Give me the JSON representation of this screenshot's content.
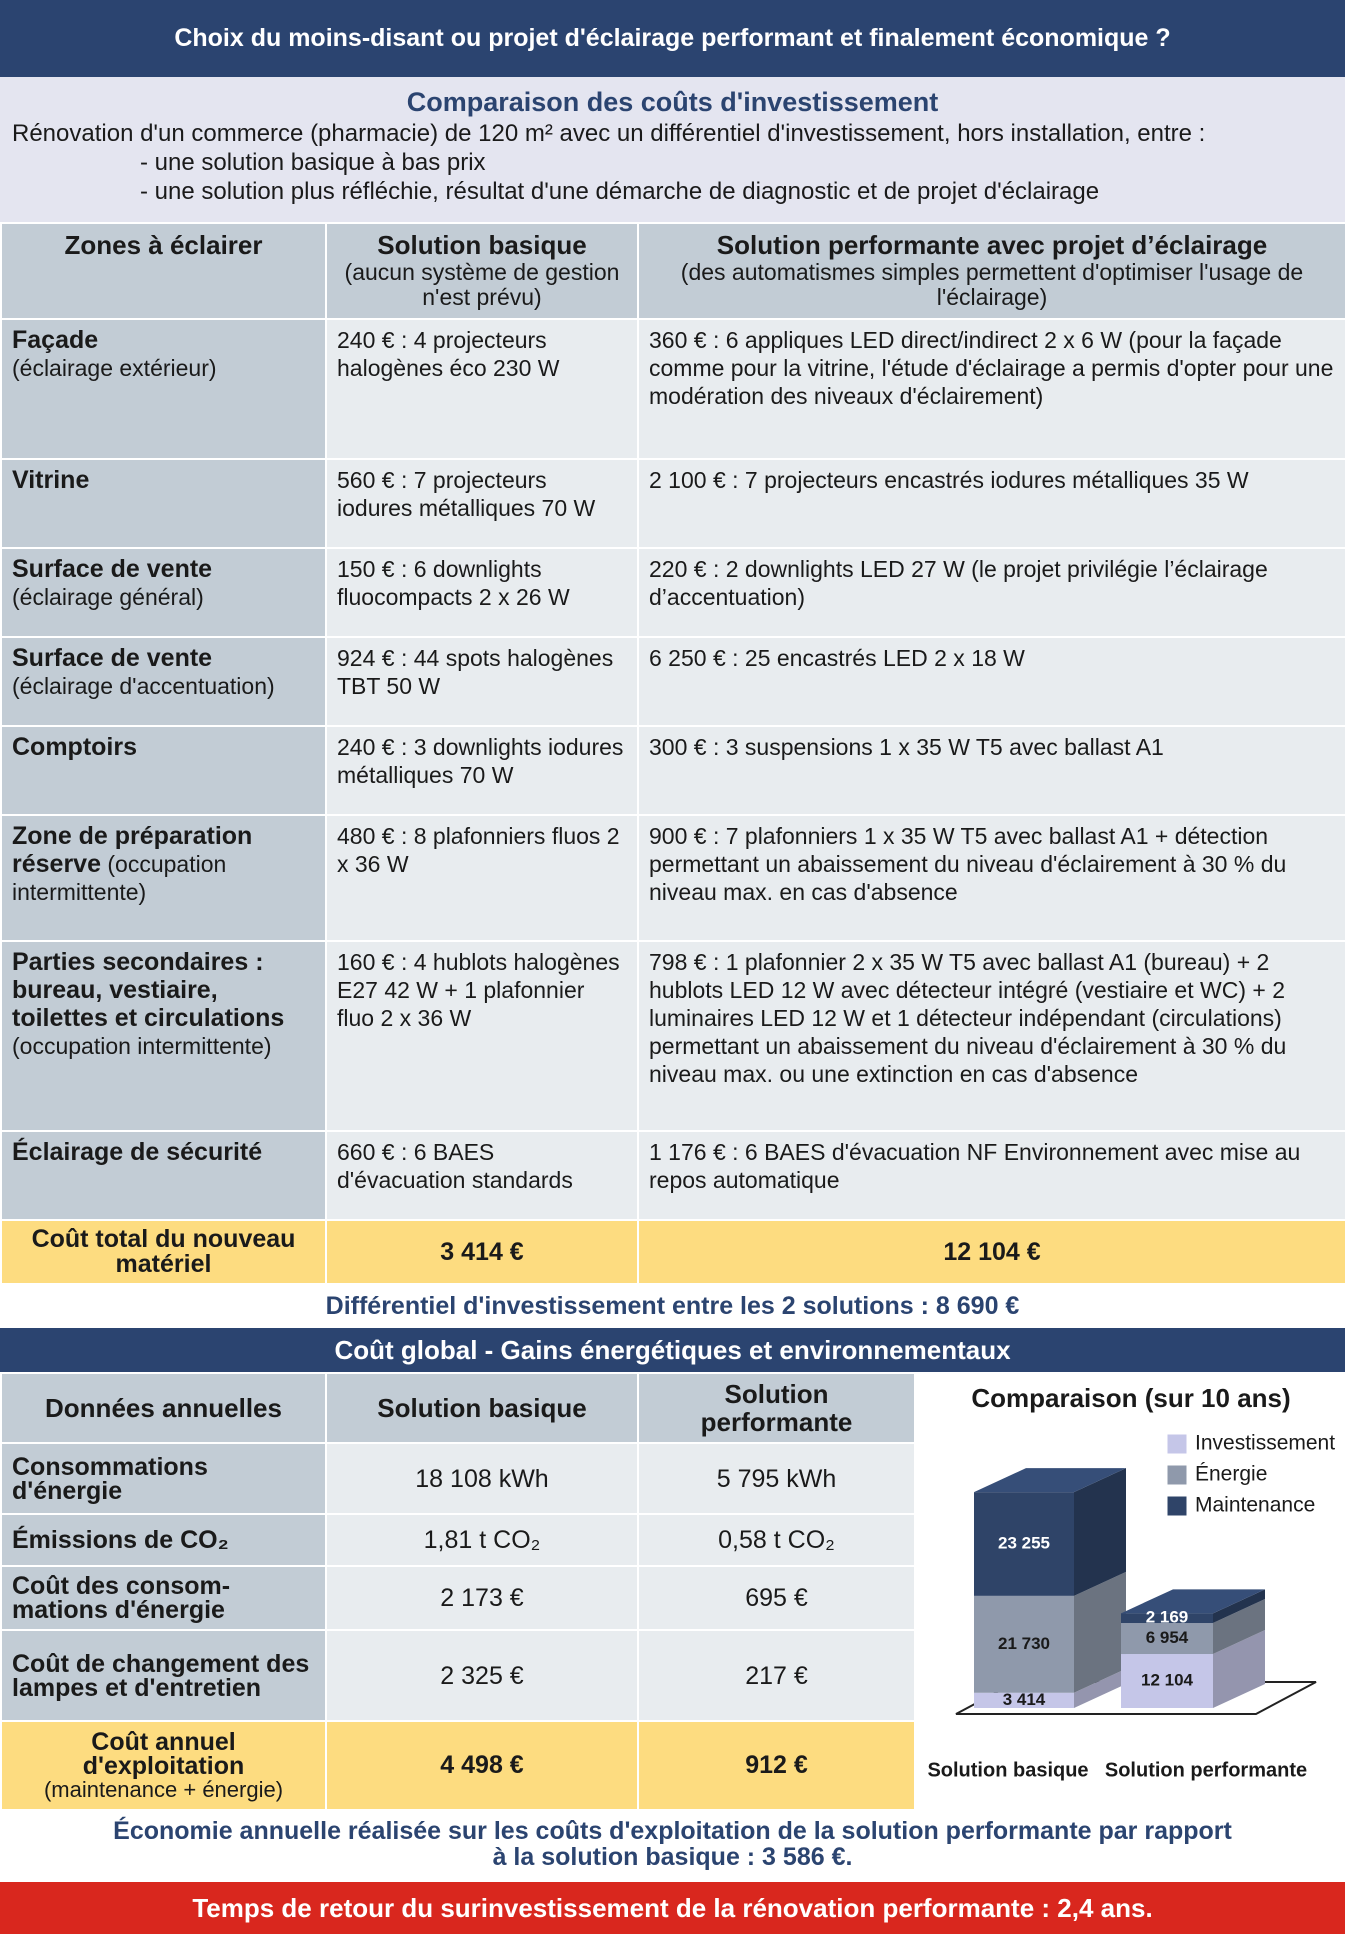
{
  "header": {
    "title": "Choix du moins-disant ou projet d'éclairage performant et finalement économique ?"
  },
  "intro": {
    "title": "Comparaison des coûts d'investissement",
    "text": "Rénovation d'un commerce (pharmacie) de 120 m² avec un différentiel d'investissement, hors installation, entre :",
    "bullets": [
      "- une solution basique à bas prix",
      "- une solution plus réfléchie, résultat d'une démarche de diagnostic et de projet d'éclairage"
    ]
  },
  "investment_table": {
    "columns": [
      {
        "title": "Zones à éclairer"
      },
      {
        "title": "Solution basique",
        "note": "(aucun système de gestion n'est prévu)"
      },
      {
        "title": "Solution performante avec projet d’éclairage",
        "note": "(des automatismes simples permettent d'optimiser l'usage de l'éclairage)"
      }
    ],
    "rows": [
      {
        "zone": "Façade",
        "note": "(éclairage extérieur)",
        "basique": "240 € : 4 projecteurs halogènes éco 230 W",
        "performante": "360 € : 6 appliques LED direct/indirect 2 x 6 W (pour la façade comme pour la vitrine, l'étude d'éclairage a permis d'opter pour une modération des niveaux d'éclairement)"
      },
      {
        "zone": "Vitrine",
        "basique": "560 € : 7 projecteurs iodures métalliques 70 W",
        "performante": "2 100 € : 7 projecteurs encastrés iodures métalliques 35 W"
      },
      {
        "zone": "Surface de vente",
        "note": "(éclairage général)",
        "basique": "150 € : 6 downlights fluocompacts 2 x 26 W",
        "performante": "220 € : 2 downlights LED 27 W (le projet privilégie l’éclairage d’accentuation)"
      },
      {
        "zone": "Surface de vente",
        "note": "(éclairage d'accentuation)",
        "basique": "924 € : 44 spots halogènes TBT 50 W",
        "performante": "6 250 € : 25 encastrés LED 2 x 18 W"
      },
      {
        "zone": "Comptoirs",
        "basique": "240 € : 3 downlights iodures métalliques 70 W",
        "performante": "300 € : 3 suspensions 1 x 35 W T5 avec ballast A1"
      },
      {
        "zone": "Zone de préparation réserve",
        "note": "(occupation intermittente)",
        "basique": "480 € : 8 plafonniers fluos 2 x 36 W",
        "performante": "900 € : 7 plafonniers 1 x 35 W T5 avec ballast A1 + détection permettant un abaissement du niveau d'éclairement à 30 % du niveau max. en cas d'absence"
      },
      {
        "zone": "Parties secondaires : bureau, vestiaire, toilettes et circulations",
        "note": "(occupation intermittente)",
        "basique": "160 € : 4 hublots halogènes E27 42 W + 1 plafonnier fluo 2 x 36 W",
        "performante": "798 € : 1 plafonnier 2 x 35 W T5 avec ballast A1 (bureau) + 2 hublots LED 12 W avec détecteur intégré (vestiaire et WC) + 2 luminaires LED 12 W et 1 détecteur indépendant (circulations) permettant un abaissement du niveau d'éclairement à 30 % du niveau max. ou une extinction en cas d'absence"
      },
      {
        "zone": "Éclairage de sécurité",
        "basique": "660 € : 6 BAES d'évacuation standards",
        "performante": "1 176 € : 6 BAES d'évacuation NF Environnement avec mise au repos automatique"
      }
    ],
    "total": {
      "label": "Coût total du nouveau matériel",
      "basique": "3 414 €",
      "performante": "12 104 €"
    }
  },
  "differential": "Différentiel d'investissement entre les 2 solutions : 8 690 €",
  "global_title": "Coût global - Gains énergétiques et environnementaux",
  "annual_table": {
    "columns": [
      "Données annuelles",
      "Solution basique",
      "Solution performante"
    ],
    "rows": [
      [
        "Consommations d'énergie",
        "18 108 kWh",
        "5 795 kWh"
      ],
      [
        "Émissions de CO₂",
        "1,81 t CO₂",
        "0,58 t CO₂"
      ],
      [
        "Coût des consom-mations d'énergie",
        "2 173 €",
        "695 €"
      ],
      [
        "Coût de changement des lampes et d'entretien",
        "2 325 €",
        "217 €"
      ]
    ],
    "total": {
      "label": "Coût annuel d'exploitation",
      "note": "(maintenance + énergie)",
      "basique": "4 498 €",
      "performante": "912 €"
    }
  },
  "chart_data": {
    "type": "bar",
    "stacked": true,
    "title": "Comparaison (sur 10 ans)",
    "categories": [
      "Solution basique",
      "Solution performante"
    ],
    "series": [
      {
        "name": "Investissement",
        "color": "#c5c6e8",
        "values": [
          3414,
          12104
        ],
        "value_labels": [
          "3 414",
          "12 104"
        ]
      },
      {
        "name": "Énergie",
        "color": "#8f99ab",
        "values": [
          21730,
          6954
        ],
        "value_labels": [
          "21 730",
          "6 954"
        ]
      },
      {
        "name": "Maintenance",
        "color": "#2f4468",
        "values": [
          23255,
          2169
        ],
        "value_labels": [
          "23 255",
          "2 169"
        ]
      }
    ]
  },
  "savings": "Économie annuelle réalisée sur les coûts d'exploitation de la solution performante par rapport à la solution basique : 3 586 €.",
  "payback": "Temps de retour du surinvestissement de la rénovation performante : 2,4 ans."
}
